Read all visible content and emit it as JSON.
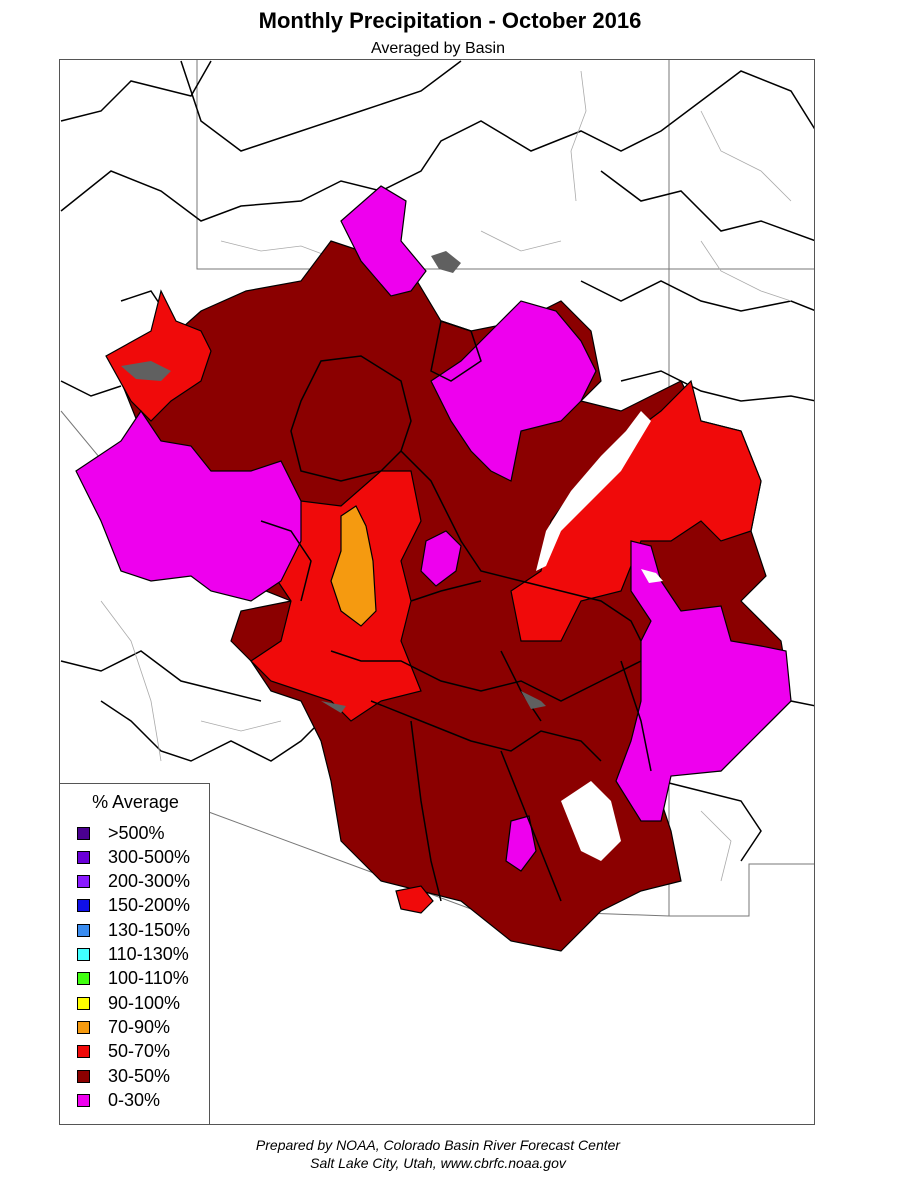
{
  "header": {
    "title": "Monthly Precipitation - October 2016",
    "subtitle": "Averaged by Basin"
  },
  "legend": {
    "title": "% Average",
    "items": [
      {
        "label": ">500%",
        "color": "#4b0090"
      },
      {
        "label": "300-500%",
        "color": "#6a00d8"
      },
      {
        "label": "200-300%",
        "color": "#8a1bff"
      },
      {
        "label": "150-200%",
        "color": "#1010e8"
      },
      {
        "label": "130-150%",
        "color": "#3a8cf0"
      },
      {
        "label": "110-130%",
        "color": "#40ffff"
      },
      {
        "label": "100-110%",
        "color": "#40ff10"
      },
      {
        "label": "90-100%",
        "color": "#ffff00"
      },
      {
        "label": "70-90%",
        "color": "#f59a10"
      },
      {
        "label": "50-70%",
        "color": "#f00a0a"
      },
      {
        "label": "30-50%",
        "color": "#8b0000"
      },
      {
        "label": "0-30%",
        "color": "#ee00ee"
      }
    ]
  },
  "colors": {
    "dark_red": "#8b0000",
    "red": "#f00a0a",
    "magenta": "#ee00ee",
    "orange": "#f59a10",
    "lake": "#606060"
  },
  "footer": {
    "line1": "Prepared by NOAA, Colorado Basin River Forecast Center",
    "line2": "Salt Lake City, Utah, www.cbrfc.noaa.gov"
  }
}
